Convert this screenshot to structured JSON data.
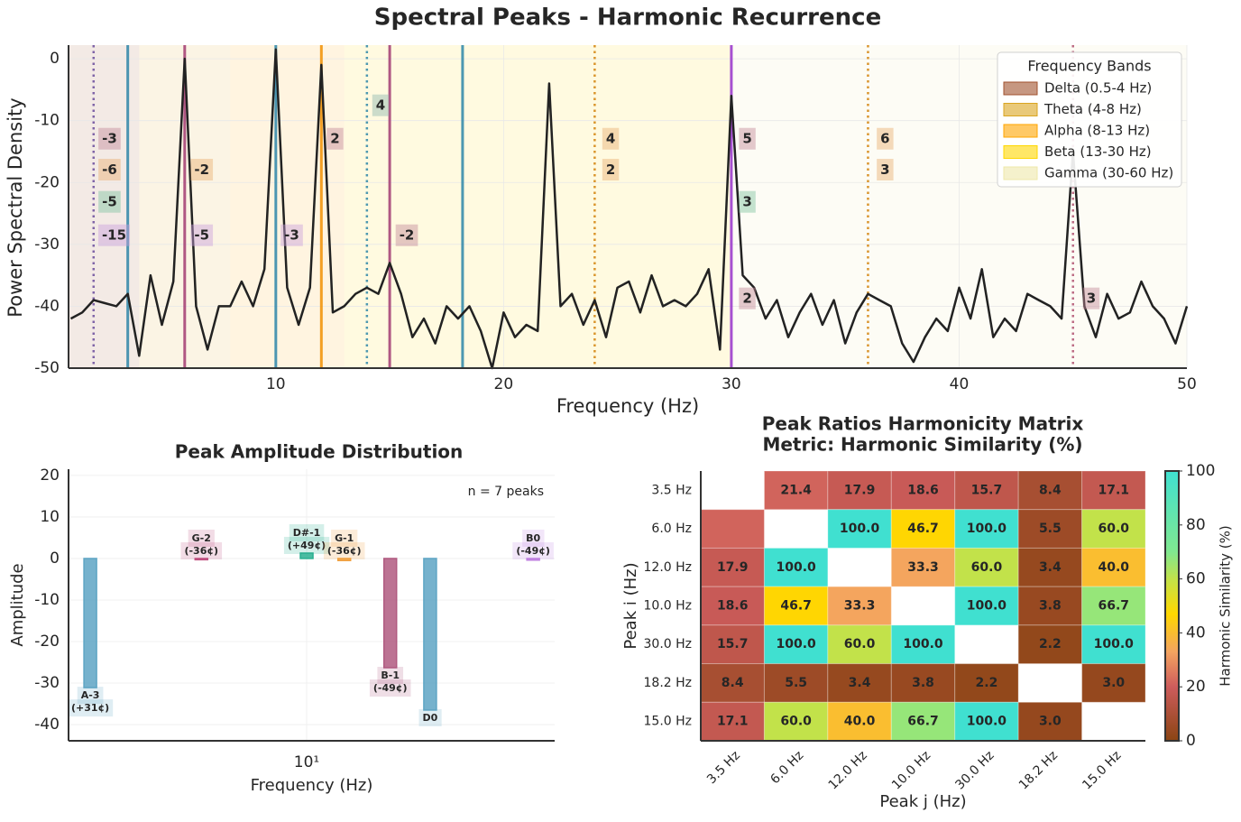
{
  "title": "Spectral Peaks - Harmonic Recurrence",
  "chart_data": [
    {
      "type": "line",
      "xlabel": "Frequency (Hz)",
      "ylabel": "Power Spectral Density",
      "color": "#222222",
      "x": [
        1,
        1.5,
        2,
        2.5,
        3,
        3.5,
        4,
        4.5,
        5,
        5.5,
        6,
        6.5,
        7,
        7.5,
        8,
        8.5,
        9,
        9.5,
        10,
        10.5,
        11,
        11.5,
        12,
        12.5,
        13,
        13.5,
        14,
        14.5,
        15,
        15.5,
        16,
        16.5,
        17,
        17.5,
        18,
        18.5,
        19,
        19.5,
        20,
        20.5,
        21,
        21.5,
        22,
        22.5,
        23,
        23.5,
        24,
        24.5,
        25,
        25.5,
        26,
        26.5,
        27,
        27.5,
        28,
        28.5,
        29,
        29.5,
        30,
        30.5,
        31,
        31.5,
        32,
        32.5,
        33,
        33.5,
        34,
        34.5,
        35,
        35.5,
        36,
        36.5,
        37,
        37.5,
        38,
        38.5,
        39,
        39.5,
        40,
        40.5,
        41,
        41.5,
        42,
        42.5,
        43,
        43.5,
        44,
        44.5,
        45,
        45.5,
        46,
        46.5,
        47,
        47.5,
        48,
        48.5,
        49,
        49.5,
        50
      ],
      "values": [
        -42,
        -41,
        -39,
        -39.5,
        -40,
        -38,
        -48,
        -35,
        -43,
        -36,
        0,
        -40,
        -47,
        -40,
        -40,
        -36,
        -40,
        -34,
        1.5,
        -37,
        -43,
        -37,
        -1,
        -41,
        -40,
        -38,
        -37,
        -38,
        -33,
        -38,
        -45,
        -42,
        -46,
        -40,
        -42,
        -40,
        -44,
        -50,
        -41,
        -45,
        -43,
        -44,
        -4,
        -40,
        -38,
        -43,
        -39,
        -45,
        -37,
        -36,
        -41,
        -35,
        -40,
        -39,
        -40,
        -38,
        -34,
        -47,
        -6,
        -35,
        -37,
        -42,
        -39,
        -45,
        -41,
        -38,
        -43,
        -39,
        -46,
        -41,
        -38,
        -39,
        -40,
        -46,
        -49,
        -45,
        -42,
        -44,
        -37,
        -42,
        -34,
        -45,
        -42,
        -44,
        -38,
        -39,
        -40,
        -42,
        -15,
        -40,
        -45,
        -38,
        -42,
        -41,
        -36,
        -40,
        -42,
        -46,
        -40
      ],
      "xlim": [
        0.9,
        50
      ],
      "ylim": [
        -50,
        2.2
      ],
      "xticks": [
        10,
        20,
        30,
        40,
        50
      ],
      "yticks": [
        0,
        -10,
        -20,
        -30,
        -40,
        -50
      ],
      "grid": true,
      "legend": "upper right",
      "legend_title": "Frequency Bands",
      "bands": [
        {
          "name": "Delta (0.5-4 Hz)",
          "range": [
            0.5,
            4
          ],
          "color": "#a0522d"
        },
        {
          "name": "Theta (4-8 Hz)",
          "range": [
            4,
            8
          ],
          "color": "#daa520"
        },
        {
          "name": "Alpha (8-13 Hz)",
          "range": [
            8,
            13
          ],
          "color": "#ffa500"
        },
        {
          "name": "Beta (13-30 Hz)",
          "range": [
            13,
            30
          ],
          "color": "#ffd700"
        },
        {
          "name": "Gamma (30-60 Hz)",
          "range": [
            30,
            60
          ],
          "color": "#eee8aa"
        }
      ],
      "vlines": [
        {
          "x": 3.5,
          "color": "#2e86a8",
          "style": "solid"
        },
        {
          "x": 6,
          "color": "#a23b72",
          "style": "solid"
        },
        {
          "x": 10,
          "color": "#2e86a8",
          "style": "solid"
        },
        {
          "x": 12,
          "color": "#f18f01",
          "style": "solid"
        },
        {
          "x": 15,
          "color": "#a23b72",
          "style": "solid"
        },
        {
          "x": 18.2,
          "color": "#2e86a8",
          "style": "solid"
        },
        {
          "x": 30,
          "color": "#9932cc",
          "style": "solid"
        },
        {
          "x": 2,
          "color": "#6a4c9c",
          "style": "dotted"
        },
        {
          "x": 14,
          "color": "#2e86a8",
          "style": "dotted"
        },
        {
          "x": 24,
          "color": "#d4820a",
          "style": "dotted"
        },
        {
          "x": 36,
          "color": "#d4820a",
          "style": "dotted"
        },
        {
          "x": 45,
          "color": "#b05070",
          "style": "dotted"
        }
      ],
      "annotations": [
        {
          "text": "-3",
          "x": 2.7,
          "y": -13,
          "color": "#c48a9a"
        },
        {
          "text": "-6",
          "x": 2.7,
          "y": -18,
          "color": "#e8b070"
        },
        {
          "text": "-5",
          "x": 2.7,
          "y": -23.2,
          "color": "#7fc4a0"
        },
        {
          "text": "-15",
          "x": 2.9,
          "y": -28.6,
          "color": "#c9a0dc"
        },
        {
          "text": "-2",
          "x": 6.75,
          "y": -18,
          "color": "#e8b070"
        },
        {
          "text": "-5",
          "x": 6.75,
          "y": -28.6,
          "color": "#c9a0dc"
        },
        {
          "text": "-3",
          "x": 10.7,
          "y": -28.6,
          "color": "#c9a0dc"
        },
        {
          "text": "2",
          "x": 12.6,
          "y": -13,
          "color": "#c48a9a"
        },
        {
          "text": "4",
          "x": 14.6,
          "y": -7.6,
          "color": "#8fb8b0"
        },
        {
          "text": "-2",
          "x": 15.75,
          "y": -28.6,
          "color": "#c48a9a"
        },
        {
          "text": "4",
          "x": 24.7,
          "y": -13,
          "color": "#e8b070"
        },
        {
          "text": "2",
          "x": 24.7,
          "y": -18,
          "color": "#e8b070"
        },
        {
          "text": "5",
          "x": 30.7,
          "y": -13,
          "color": "#c48a9a"
        },
        {
          "text": "3",
          "x": 30.7,
          "y": -23.2,
          "color": "#7fc4a0"
        },
        {
          "text": "2",
          "x": 30.7,
          "y": -38.8,
          "color": "#c48a9a"
        },
        {
          "text": "6",
          "x": 36.75,
          "y": -13,
          "color": "#e8b070"
        },
        {
          "text": "3",
          "x": 36.75,
          "y": -18,
          "color": "#e8b070"
        },
        {
          "text": "3",
          "x": 45.8,
          "y": -38.8,
          "color": "#c48a9a"
        }
      ]
    },
    {
      "type": "bar",
      "title": "Peak Amplitude Distribution",
      "xlabel": "Frequency (Hz)",
      "ylabel": "Amplitude",
      "xscale": "log",
      "x": [
        3.5,
        6,
        10,
        12,
        15,
        18.2,
        30
      ],
      "values": [
        -31.1,
        -0.3,
        1.3,
        -0.5,
        -26.3,
        -36.5,
        -0.4
      ],
      "colors": [
        "#5ea5c4",
        "#c05080",
        "#2ab090",
        "#f0a040",
        "#b05a80",
        "#5ea5c4",
        "#c080e0"
      ],
      "labels": [
        [
          "A-3",
          "(+31¢)"
        ],
        [
          "G-2",
          "(-36¢)"
        ],
        [
          "D#-1",
          "(+49¢)"
        ],
        [
          "G-1",
          "(-36¢)"
        ],
        [
          "B-1",
          "(-49¢)"
        ],
        [
          "D0"
        ],
        [
          "B0",
          "(-49¢)"
        ]
      ],
      "annotation": "n = 7 peaks",
      "xlim": [
        3.15,
        33.3
      ],
      "ylim": [
        -43.9,
        21.5
      ],
      "xticks": [
        {
          "value": 10,
          "label": "10¹"
        }
      ],
      "yticks": [
        -40,
        -30,
        -20,
        -10,
        0,
        10,
        20
      ],
      "grid": true
    },
    {
      "type": "heatmap",
      "title": [
        "Peak Ratios Harmonicity Matrix",
        "Metric: Harmonic Similarity (%)"
      ],
      "xlabel": "Peak j (Hz)",
      "ylabel": "Peak i (Hz)",
      "categories": [
        "3.5 Hz",
        "6.0 Hz",
        "12.0 Hz",
        "10.0 Hz",
        "30.0 Hz",
        "18.2 Hz",
        "15.0 Hz"
      ],
      "values": [
        [
          null,
          21.4,
          17.9,
          18.6,
          15.7,
          8.4,
          17.1
        ],
        [
          21.4,
          null,
          100,
          46.7,
          100,
          5.5,
          60
        ],
        [
          17.9,
          100,
          null,
          33.3,
          60,
          3.4,
          40
        ],
        [
          18.6,
          46.7,
          33.3,
          null,
          100,
          3.8,
          66.7
        ],
        [
          15.7,
          100,
          60,
          100,
          null,
          2.2,
          100
        ],
        [
          8.4,
          5.5,
          3.4,
          3.8,
          2.2,
          null,
          3
        ],
        [
          17.1,
          60,
          40,
          66.7,
          100,
          3,
          null
        ]
      ],
      "value_labels": [
        [
          null,
          "21.4",
          "17.9",
          "18.6",
          "15.7",
          "8.4",
          "17.1"
        ],
        [
          null,
          null,
          "100.0",
          "46.7",
          "100.0",
          "5.5",
          "60.0"
        ],
        [
          "17.9",
          "100.0",
          null,
          "33.3",
          "60.0",
          "3.4",
          "40.0"
        ],
        [
          "18.6",
          "46.7",
          "33.3",
          null,
          "100.0",
          "3.8",
          "66.7"
        ],
        [
          "15.7",
          "100.0",
          "60.0",
          "100.0",
          null,
          "2.2",
          "100.0"
        ],
        [
          "8.4",
          "5.5",
          "3.4",
          "3.8",
          "2.2",
          null,
          "3.0"
        ],
        [
          "17.1",
          "60.0",
          "40.0",
          "66.7",
          "100.0",
          "3.0",
          null
        ]
      ],
      "colormap": [
        [
          0,
          "#8b4513"
        ],
        [
          20,
          "#cd5c5c"
        ],
        [
          33,
          "#f4a460"
        ],
        [
          47,
          "#ffd700"
        ],
        [
          60,
          "#c2e24a"
        ],
        [
          70,
          "#80e890"
        ],
        [
          100,
          "#40e0d0"
        ]
      ],
      "colorbar_label": "Harmonic Similarity (%)",
      "clim": [
        0,
        100
      ],
      "cticks": [
        0,
        20,
        40,
        60,
        80,
        100
      ]
    }
  ]
}
